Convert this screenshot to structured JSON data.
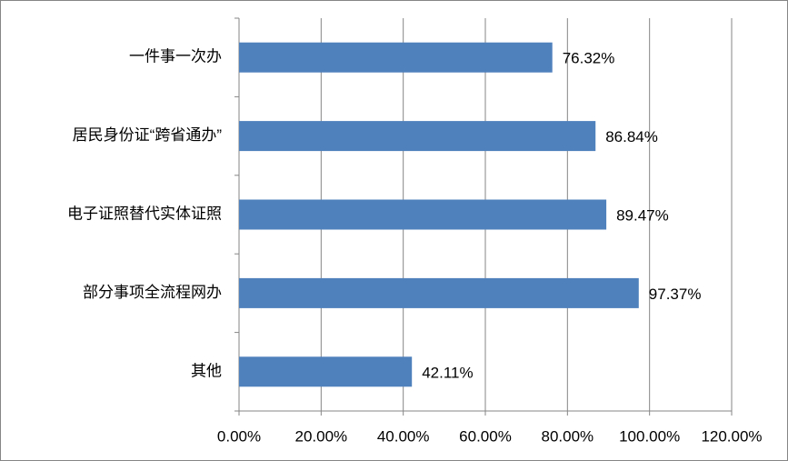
{
  "chart_data": {
    "type": "bar",
    "orientation": "horizontal",
    "categories": [
      "一件事一次办",
      "居民身份证“跨省通办”",
      "电子证照替代实体证照",
      "部分事项全流程网办",
      "其他"
    ],
    "values": [
      76.32,
      86.84,
      89.47,
      97.37,
      42.11
    ],
    "value_labels": [
      "76.32%",
      "86.84%",
      "89.47%",
      "97.37%",
      "42.11%"
    ],
    "color": "#4f81bd",
    "xlim": [
      0,
      120
    ],
    "xticks": [
      {
        "value": 0,
        "label": "0.00%"
      },
      {
        "value": 20,
        "label": "20.00%"
      },
      {
        "value": 40,
        "label": "40.00%"
      },
      {
        "value": 60,
        "label": "60.00%"
      },
      {
        "value": 80,
        "label": "80.00%"
      },
      {
        "value": 100,
        "label": "100.00%"
      },
      {
        "value": 120,
        "label": "120.00%"
      }
    ],
    "grid": true
  }
}
